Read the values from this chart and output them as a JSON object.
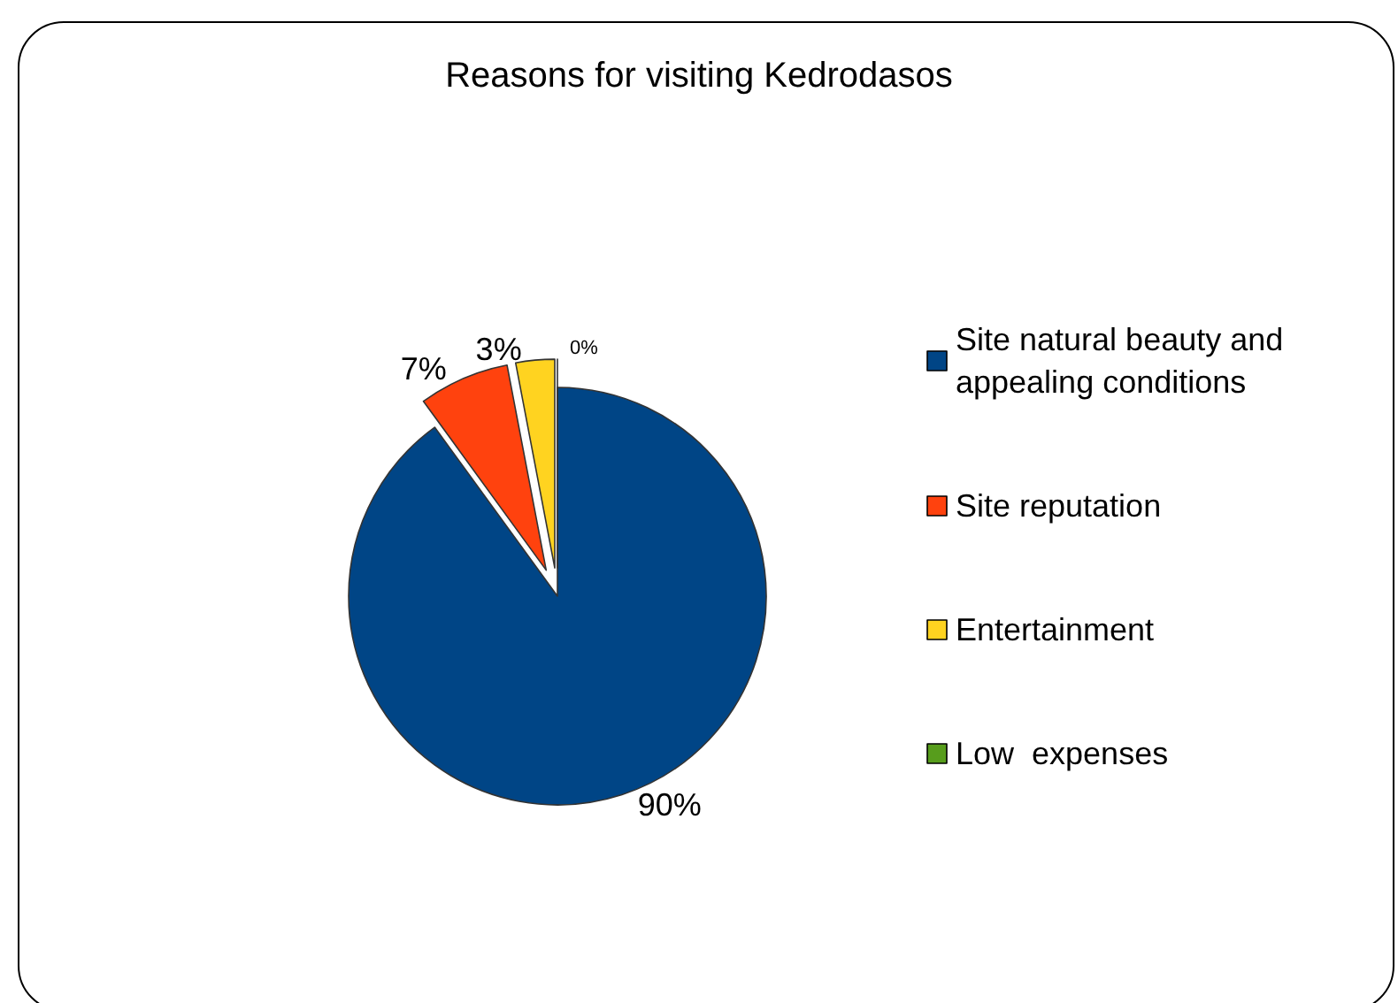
{
  "chart_data": {
    "type": "pie",
    "title": "Reasons for visiting Kedrodasos",
    "categories": [
      "Site natural beauty and appealing conditions",
      "Site reputation",
      "Entertainment",
      "Low  expenses"
    ],
    "values": [
      90,
      7,
      3,
      0
    ],
    "colors": [
      "#004586",
      "#ff420e",
      "#ffd320",
      "#579d1c"
    ],
    "value_labels": [
      "90%",
      "7%",
      "3%",
      "0%"
    ],
    "legend": "right"
  }
}
